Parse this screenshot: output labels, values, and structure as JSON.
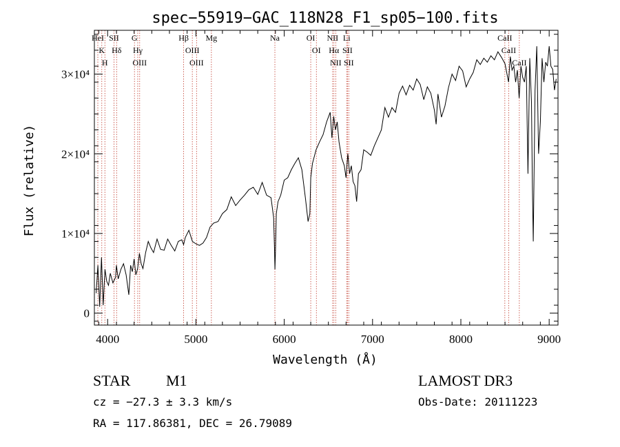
{
  "chart_data": {
    "type": "line",
    "title": "spec−55919−GAC_118N28_F1_sp05−100.fits",
    "xlabel": "Wavelength (Å)",
    "ylabel": "Flux (relative)",
    "xlim": [
      3850,
      9100
    ],
    "ylim": [
      -1500,
      35500
    ],
    "x_ticks": [
      {
        "value": 4000,
        "label": "4000"
      },
      {
        "value": 5000,
        "label": "5000"
      },
      {
        "value": 6000,
        "label": "6000"
      },
      {
        "value": 7000,
        "label": "7000"
      },
      {
        "value": 8000,
        "label": "8000"
      },
      {
        "value": 9000,
        "label": "9000"
      }
    ],
    "y_ticks": [
      {
        "value": 0,
        "label": "0"
      },
      {
        "value": 10000,
        "label": "1×10⁴"
      },
      {
        "value": 20000,
        "label": "2×10⁴"
      },
      {
        "value": 30000,
        "label": "3×10⁴"
      }
    ],
    "series": [
      {
        "name": "flux",
        "x": [
          3870,
          3890,
          3910,
          3930,
          3950,
          3970,
          3990,
          4010,
          4030,
          4060,
          4090,
          4100,
          4120,
          4150,
          4180,
          4210,
          4240,
          4260,
          4280,
          4300,
          4320,
          4340,
          4360,
          4380,
          4400,
          4430,
          4460,
          4490,
          4520,
          4560,
          4600,
          4640,
          4680,
          4720,
          4760,
          4800,
          4840,
          4860,
          4880,
          4920,
          4960,
          5000,
          5040,
          5080,
          5120,
          5160,
          5200,
          5250,
          5300,
          5350,
          5400,
          5450,
          5500,
          5550,
          5600,
          5650,
          5700,
          5750,
          5800,
          5850,
          5880,
          5890,
          5895,
          5900,
          5910,
          5930,
          5960,
          6000,
          6040,
          6080,
          6120,
          6160,
          6200,
          6240,
          6270,
          6290,
          6300,
          6320,
          6360,
          6400,
          6440,
          6480,
          6520,
          6540,
          6560,
          6580,
          6600,
          6620,
          6650,
          6680,
          6700,
          6720,
          6740,
          6760,
          6780,
          6800,
          6820,
          6840,
          6870,
          6900,
          6940,
          6980,
          7020,
          7060,
          7100,
          7140,
          7180,
          7220,
          7260,
          7300,
          7340,
          7380,
          7420,
          7460,
          7500,
          7540,
          7580,
          7620,
          7660,
          7700,
          7720,
          7740,
          7780,
          7820,
          7860,
          7900,
          7940,
          7980,
          8020,
          8060,
          8100,
          8140,
          8180,
          8220,
          8260,
          8300,
          8340,
          8380,
          8420,
          8460,
          8500,
          8540,
          8560,
          8580,
          8600,
          8620,
          8640,
          8660,
          8680,
          8700,
          8720,
          8740,
          8760,
          8780,
          8800,
          8810,
          8820,
          8840,
          8860,
          8880,
          8900,
          8920,
          8940,
          8960,
          8980,
          9000,
          9020,
          9040,
          9060,
          9080
        ],
        "y": [
          2500,
          6000,
          800,
          7000,
          1000,
          5500,
          4000,
          3500,
          5000,
          3800,
          4500,
          6000,
          4300,
          5500,
          6200,
          4800,
          2300,
          6000,
          5200,
          6800,
          4800,
          5600,
          7500,
          6200,
          5600,
          7600,
          9000,
          8200,
          7600,
          9300,
          8000,
          7900,
          9300,
          8500,
          7800,
          9000,
          9200,
          8600,
          9500,
          10400,
          9000,
          8700,
          8500,
          8800,
          9500,
          10800,
          11300,
          11500,
          12500,
          13000,
          14600,
          13500,
          14200,
          14800,
          15500,
          15800,
          14900,
          16400,
          14800,
          14500,
          12000,
          8000,
          5500,
          7500,
          12500,
          14000,
          14800,
          16700,
          17000,
          18000,
          18800,
          19500,
          18000,
          14400,
          11500,
          12500,
          17000,
          18800,
          20500,
          21500,
          22400,
          24000,
          25200,
          22000,
          24700,
          23000,
          24000,
          21500,
          19500,
          18500,
          17000,
          20000,
          17500,
          18500,
          16500,
          16000,
          14000,
          17500,
          18000,
          20500,
          20200,
          19800,
          21000,
          22000,
          23000,
          25800,
          24600,
          25800,
          25200,
          27600,
          28500,
          27400,
          28600,
          28000,
          29400,
          28700,
          26800,
          28400,
          27600,
          25500,
          23700,
          27500,
          24600,
          26000,
          28300,
          30000,
          29200,
          31000,
          30400,
          28400,
          29400,
          30200,
          31800,
          31200,
          32000,
          31500,
          32300,
          31800,
          32800,
          32100,
          31300,
          29000,
          32200,
          30500,
          31000,
          29000,
          30500,
          27000,
          31000,
          29600,
          29000,
          31000,
          17500,
          32000,
          26500,
          16000,
          9000,
          28000,
          33500,
          20000,
          24000,
          32000,
          29000,
          31500,
          31000,
          33500,
          31000,
          30600,
          28000,
          29400
        ]
      }
    ],
    "line_markers": [
      {
        "wavelength": 3934,
        "label": "K"
      },
      {
        "wavelength": 3969,
        "label": "H"
      },
      {
        "wavelength": 3889,
        "label": "HeI"
      },
      {
        "wavelength": 4072,
        "label": "SII"
      },
      {
        "wavelength": 4102,
        "label": "Hδ"
      },
      {
        "wavelength": 4304,
        "label": "G"
      },
      {
        "wavelength": 4341,
        "label": "Hγ"
      },
      {
        "wavelength": 4363,
        "label": "OIII"
      },
      {
        "wavelength": 4861,
        "label": "Hβ"
      },
      {
        "wavelength": 4959,
        "label": "OIII"
      },
      {
        "wavelength": 5007,
        "label": "OIII"
      },
      {
        "wavelength": 5175,
        "label": "Mg"
      },
      {
        "wavelength": 5894,
        "label": "Na"
      },
      {
        "wavelength": 6300,
        "label": "OI"
      },
      {
        "wavelength": 6364,
        "label": "OI"
      },
      {
        "wavelength": 6548,
        "label": "NII"
      },
      {
        "wavelength": 6563,
        "label": "Hα"
      },
      {
        "wavelength": 6583,
        "label": "NII"
      },
      {
        "wavelength": 6707,
        "label": "Li"
      },
      {
        "wavelength": 6716,
        "label": "SII"
      },
      {
        "wavelength": 6731,
        "label": "SII"
      },
      {
        "wavelength": 8498,
        "label": "CaII"
      },
      {
        "wavelength": 8542,
        "label": "CaII"
      },
      {
        "wavelength": 8662,
        "label": "CaII"
      }
    ],
    "marker_color": "#c0392b",
    "line_color": "#000000"
  },
  "info": {
    "class_label": "STAR",
    "subclass_label": "M1",
    "redshift_line": "cz = −27.3 ± 3.3 km/s",
    "coords_line": "RA = 117.86381, DEC =  26.79089",
    "survey_label": "LAMOST DR3",
    "obs_date_line": "Obs-Date: 20111223"
  }
}
